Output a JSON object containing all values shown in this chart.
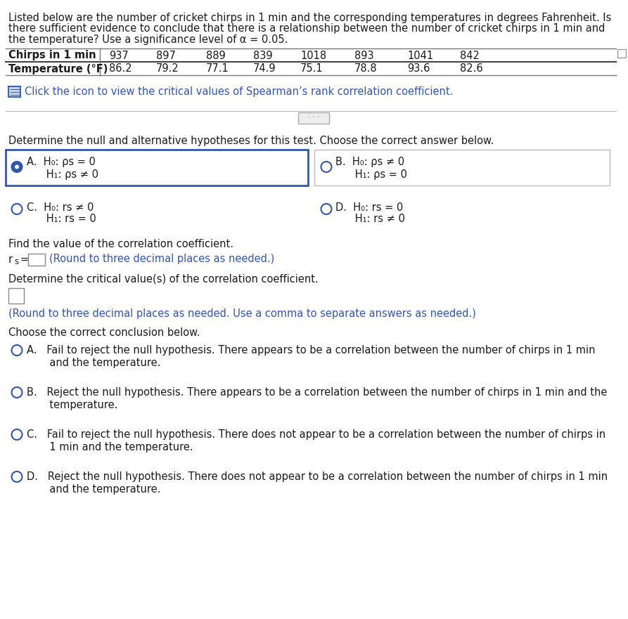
{
  "bg_color": "#ffffff",
  "text_color": "#1a1a1a",
  "blue_color": "#3355aa",
  "circle_color": "#3355aa",
  "selected_border": "#3355aa",
  "fig_w": 8.93,
  "fig_h": 8.81,
  "dpi": 100,
  "intro_lines": [
    "Listed below are the number of cricket chirps in 1 min and the corresponding temperatures in degrees Fahrenheit. Is",
    "there sufficient evidence to conclude that there is a relationship between the number of cricket chirps in 1 min and",
    "the temperature? Use a significance level of α = 0.05."
  ],
  "table_col1_h": "Chirps in 1 min",
  "table_col1_r2": "Temperature (°F)",
  "table_data_h": [
    "937",
    "897",
    "889",
    "839",
    "1018",
    "893",
    "1041",
    "842"
  ],
  "table_data_r2": [
    "86.2",
    "79.2",
    "77.1",
    "74.9",
    "75.1",
    "78.8",
    "93.6",
    "82.6"
  ],
  "icon_line": "Click the icon to view the critical values of Spearman’s rank correlation coefficient.",
  "hyp_label": "Determine the null and alternative hypotheses for this test. Choose the correct answer below.",
  "optA_l1": "A.  H₀: ρs = 0",
  "optA_l2": "      H₁: ρs ≠ 0",
  "optB_l1": "B.  H₀: ρs ≠ 0",
  "optB_l2": "      H₁: ρs = 0",
  "optC_l1": "C.  H₀: rs ≠ 0",
  "optC_l2": "      H₁: rs = 0",
  "optD_l1": "D.  H₀: rs = 0",
  "optD_l2": "      H₁: rs ≠ 0",
  "find_coeff": "Find the value of the correlation coefficient.",
  "rs_label": "r",
  "rs_sub": "s",
  "rs_eq": " = ",
  "rs_note": "(Round to three decimal places as needed.)",
  "crit_label": "Determine the critical value(s) of the correlation coefficient.",
  "crit_note": "(Round to three decimal places as needed. Use a comma to separate answers as needed.)",
  "conc_label": "Choose the correct conclusion below.",
  "concA_l1": "A.   Fail to reject the null hypothesis. There appears to be a correlation between the number of chirps in 1 min",
  "concA_l2": "       and the temperature.",
  "concB_l1": "B.   Reject the null hypothesis. There appears to be a correlation between the number of chirps in 1 min and the",
  "concB_l2": "       temperature.",
  "concC_l1": "C.   Fail to reject the null hypothesis. There does not appear to be a correlation between the number of chirps in",
  "concC_l2": "       1 min and the temperature.",
  "concD_l1": "D.   Reject the null hypothesis. There does not appear to be a correlation between the number of chirps in 1 min",
  "concD_l2": "       and the temperature."
}
